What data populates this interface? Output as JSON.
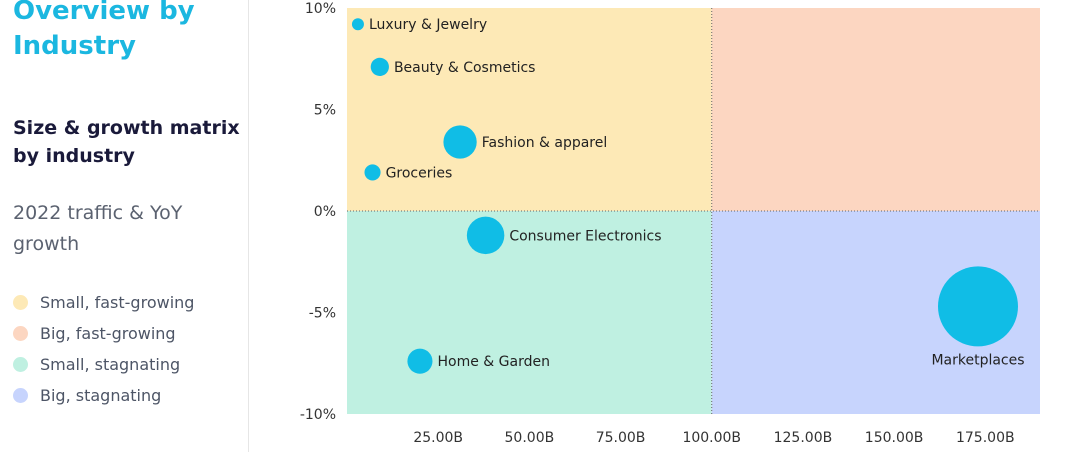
{
  "sidebar": {
    "title": "Overview by Industry",
    "subtitle": "Size & growth matrix by industry",
    "description": "2022 traffic & YoY growth",
    "legend": [
      {
        "label": "Small, fast-growing",
        "color": "#fde9b6"
      },
      {
        "label": "Big, fast-growing",
        "color": "#fcd6c1"
      },
      {
        "label": "Small, stagnating",
        "color": "#bff0e1"
      },
      {
        "label": "Big, stagnating",
        "color": "#c7d4fd"
      }
    ]
  },
  "colors": {
    "accent": "#1bb7e0",
    "bubble": "#10bde6",
    "quadrant_small_fast": "#fde9b6",
    "quadrant_big_fast": "#fcd6c1",
    "quadrant_small_stagnating": "#bff0e1",
    "quadrant_big_stagnating": "#c7d4fd"
  },
  "chart_data": {
    "type": "scatter",
    "title": "",
    "xlabel": "",
    "ylabel": "",
    "xlim": [
      0,
      190
    ],
    "ylim": [
      -10,
      10
    ],
    "x_unit": "B",
    "y_unit": "%",
    "x_ticks": [
      "25.00B",
      "50.00B",
      "75.00B",
      "100.00B",
      "125.00B",
      "150.00B",
      "175.00B"
    ],
    "x_tick_values": [
      25,
      50,
      75,
      100,
      125,
      150,
      175
    ],
    "y_ticks": [
      "10%",
      "5%",
      "0%",
      "-5%",
      "-10%"
    ],
    "y_tick_values": [
      10,
      5,
      0,
      -5,
      -10
    ],
    "quadrant_split": {
      "x": 100,
      "y": 0
    },
    "legend_placement": "left",
    "grid": false,
    "points": [
      {
        "label": "Luxury & Jewelry",
        "x": 3,
        "y": 9.2,
        "size": 3
      },
      {
        "label": "Beauty & Cosmetics",
        "x": 9,
        "y": 7.1,
        "size": 9
      },
      {
        "label": "Fashion & apparel",
        "x": 31,
        "y": 3.4,
        "size": 30
      },
      {
        "label": "Groceries",
        "x": 7,
        "y": 1.9,
        "size": 7
      },
      {
        "label": "Consumer Electronics",
        "x": 38,
        "y": -1.2,
        "size": 38
      },
      {
        "label": "Home & Garden",
        "x": 20,
        "y": -7.4,
        "size": 17
      },
      {
        "label": "Marketplaces",
        "x": 173,
        "y": -4.7,
        "size": 173
      }
    ]
  }
}
